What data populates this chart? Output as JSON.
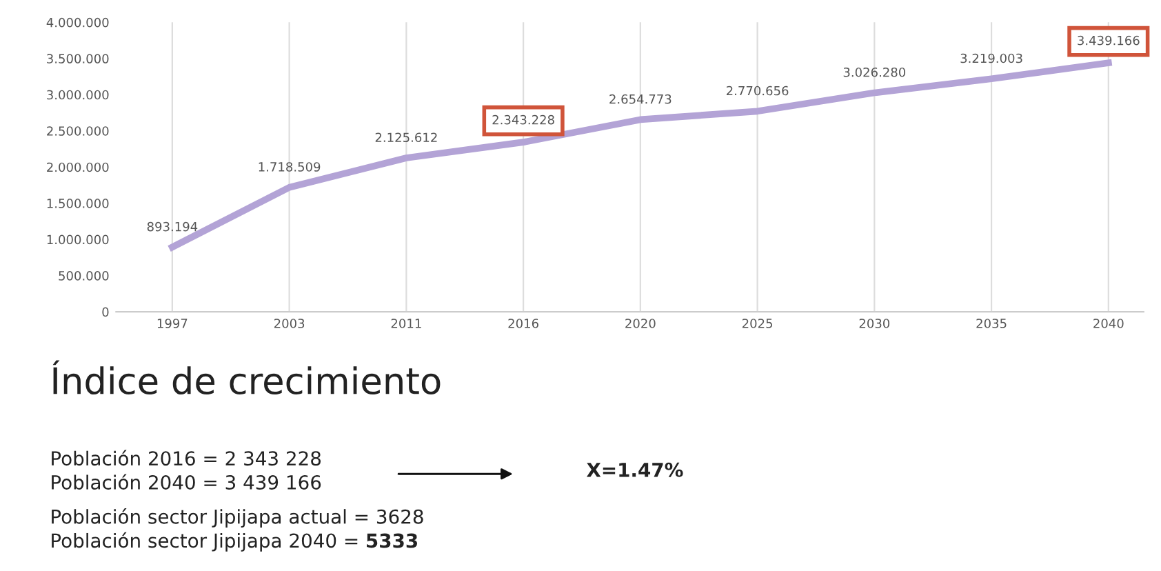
{
  "chart_data": {
    "type": "line",
    "title": "Índice de crecimiento",
    "categories": [
      "1997",
      "2003",
      "2011",
      "2016",
      "2020",
      "2025",
      "2030",
      "2035",
      "2040"
    ],
    "series": [
      {
        "color": "#b3a3d6",
        "values": [
          893194,
          1718509,
          2125612,
          2343228,
          2654773,
          2770656,
          3026280,
          3219003,
          3439166
        ],
        "value_labels": [
          "893.194",
          "1.718.509",
          "2.125.612",
          null,
          "2.654.773",
          "2.770.656",
          "3.026.280",
          "3.219.003",
          null
        ]
      }
    ],
    "ylim": [
      0,
      4000000
    ],
    "yticks": [
      0,
      {
        "value": 500000,
        "label": "500.000"
      },
      {
        "value": 1000000,
        "label": "1.000.000"
      },
      {
        "value": 1500000,
        "label": "1.500.000"
      },
      {
        "value": 2000000,
        "label": "2.000.000"
      },
      {
        "value": 2500000,
        "label": "2.500.000"
      },
      {
        "value": 3000000,
        "label": "3.000.000"
      },
      {
        "value": 3500000,
        "label": "3.500.000"
      },
      {
        "value": 4000000,
        "label": "4.000.000"
      }
    ],
    "grid": "x",
    "marker": "none",
    "line_style": "solid",
    "legend": false,
    "annotations": [
      {
        "text": "2.343.228",
        "x": "2016",
        "y": 2343228
      },
      {
        "text": "3.439.166",
        "x": "2040",
        "y": 3439166
      },
      "Población 2016 = 2 343 228",
      "Población 2040 = 3 439 166",
      "X=1.47%",
      "Población sector Jipijapa actual = 3628",
      "Población sector Jipijapa 2040 = 5333"
    ]
  }
}
